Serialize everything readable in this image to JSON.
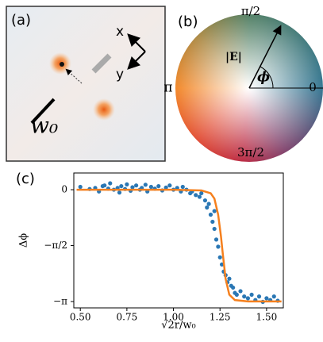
{
  "panel_a": {
    "label": "(a)",
    "axis_x": "x",
    "axis_y": "y",
    "scale_label": "w₀"
  },
  "panel_b": {
    "label": "(b)",
    "top": "π/2",
    "left": "π",
    "right": "0",
    "bottom": "3π/2",
    "vector": "|E|",
    "angle": "ϕ"
  },
  "chart_data": {
    "type": "scatter",
    "label": "(c)",
    "xlabel": "√2r/w₀",
    "ylabel": "Δϕ",
    "xlim": [
      0.465,
      1.59
    ],
    "ylim": [
      -3.32,
      0.47
    ],
    "xticks": [
      {
        "value": 0.5,
        "label": "0.50"
      },
      {
        "value": 0.75,
        "label": "0.75"
      },
      {
        "value": 1.0,
        "label": "1.00"
      },
      {
        "value": 1.25,
        "label": "1.25"
      },
      {
        "value": 1.5,
        "label": "1.50"
      }
    ],
    "yticks": [
      0,
      {
        "value": -1.5708,
        "label": "−π/2"
      },
      {
        "value": -3.1416,
        "label": "−π"
      }
    ],
    "series": [
      {
        "style": "points",
        "color": "#2a77b4",
        "x": [
          0.5,
          0.55,
          0.58,
          0.6,
          0.62,
          0.63,
          0.65,
          0.66,
          0.68,
          0.7,
          0.71,
          0.72,
          0.74,
          0.75,
          0.77,
          0.78,
          0.8,
          0.82,
          0.83,
          0.85,
          0.86,
          0.88,
          0.9,
          0.92,
          0.94,
          0.96,
          0.98,
          1.0,
          1.02,
          1.04,
          1.05,
          1.07,
          1.09,
          1.1,
          1.12,
          1.14,
          1.15,
          1.17,
          1.18,
          1.19,
          1.2,
          1.21,
          1.22,
          1.22,
          1.23,
          1.24,
          1.25,
          1.26,
          1.27,
          1.28,
          1.29,
          1.3,
          1.31,
          1.32,
          1.33,
          1.34,
          1.36,
          1.38,
          1.4,
          1.42,
          1.44,
          1.46,
          1.48,
          1.5,
          1.52,
          1.54,
          1.56
        ],
        "values": [
          0.08,
          0.02,
          0.05,
          -0.05,
          0.1,
          0.12,
          0.03,
          0.18,
          0.0,
          0.05,
          -0.08,
          0.1,
          0.02,
          0.15,
          -0.03,
          0.07,
          0.12,
          0.0,
          0.05,
          0.14,
          -0.05,
          0.08,
          0.03,
          0.1,
          -0.02,
          0.06,
          0.12,
          0.0,
          0.05,
          -0.05,
          0.08,
          0.0,
          -0.1,
          -0.05,
          -0.15,
          -0.2,
          -0.1,
          -0.3,
          -0.5,
          -0.4,
          -0.7,
          -0.9,
          -1.1,
          -0.6,
          -1.4,
          -1.6,
          -1.9,
          -2.1,
          -2.3,
          -2.4,
          -2.6,
          -2.5,
          -2.7,
          -2.75,
          -2.9,
          -2.95,
          -2.85,
          -3.0,
          -3.05,
          -2.95,
          -3.1,
          -3.0,
          -3.15,
          -3.05,
          -3.1,
          -3.0,
          -3.12
        ]
      },
      {
        "style": "line",
        "color": "#f5801e",
        "x": [
          0.48,
          1.0,
          1.15,
          1.2,
          1.22,
          1.24,
          1.255,
          1.265,
          1.28,
          1.3,
          1.33,
          1.4,
          1.58
        ],
        "values": [
          0,
          0,
          -0.02,
          -0.1,
          -0.25,
          -0.7,
          -1.3,
          -1.8,
          -2.5,
          -2.95,
          -3.1,
          -3.14,
          -3.14
        ]
      }
    ]
  }
}
